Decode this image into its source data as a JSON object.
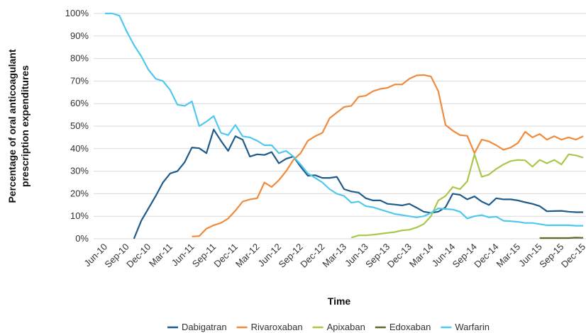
{
  "chart_data": {
    "type": "line",
    "y_label": [
      "Percentage of oral anticoagulant",
      "prescription expenditures"
    ],
    "x_label": "Time",
    "categories": [
      "Jun-10",
      null,
      null,
      "Sep-10",
      null,
      null,
      "Dec-10",
      null,
      null,
      "Mar-11",
      null,
      null,
      "Jun-11",
      null,
      null,
      "Sep-11",
      null,
      null,
      "Dec-11",
      null,
      null,
      "Mar-12",
      null,
      null,
      "Jun-12",
      null,
      null,
      "Sep-12",
      null,
      null,
      "Dec-12",
      null,
      null,
      "Mar-13",
      null,
      null,
      "Jun-13",
      null,
      null,
      "Sep-13",
      null,
      null,
      "Dec-13",
      null,
      null,
      "Mar-14",
      null,
      null,
      "Jun-14",
      null,
      null,
      "Sep-14",
      null,
      null,
      "Dec-14",
      null,
      null,
      "Mar-15",
      null,
      null,
      "Jun-15",
      null,
      null,
      "Sep-15",
      null,
      null,
      "Dec-15"
    ],
    "ylim": [
      0,
      100
    ],
    "yticks": [
      {
        "value": 0,
        "label": "0%"
      },
      {
        "value": 10,
        "label": "10%"
      },
      {
        "value": 20,
        "label": "20%"
      },
      {
        "value": 30,
        "label": "30%"
      },
      {
        "value": 40,
        "label": "40%"
      },
      {
        "value": 50,
        "label": "50%"
      },
      {
        "value": 60,
        "label": "60%"
      },
      {
        "value": 70,
        "label": "70%"
      },
      {
        "value": 80,
        "label": "80%"
      },
      {
        "value": 90,
        "label": "90%"
      },
      {
        "value": 100,
        "label": "100%"
      }
    ],
    "grid": true,
    "legend": "bottom",
    "series": [
      {
        "name": "Dabigatran",
        "color": "#1f5b8a",
        "values": [
          null,
          null,
          null,
          null,
          0,
          8,
          13.5,
          19,
          25,
          29,
          30,
          34,
          40.5,
          40.2,
          38,
          48.5,
          43.5,
          39,
          45.5,
          44,
          36.5,
          37.5,
          37.2,
          38.5,
          33.5,
          35.5,
          36.5,
          32,
          28,
          28.2,
          27,
          27,
          27.5,
          22,
          21,
          20.5,
          18,
          17,
          17,
          15.5,
          15.2,
          14.8,
          15.5,
          13.8,
          12,
          11.5,
          12,
          14,
          20,
          19.5,
          17.5,
          18.8,
          16.5,
          15,
          18,
          17.5,
          17.5,
          17,
          16.2,
          15.5,
          14.5,
          12.2,
          12.3,
          12.4,
          12,
          11.8,
          11.8
        ]
      },
      {
        "name": "Rivaroxaban",
        "color": "#f08a3c",
        "values": [
          null,
          null,
          null,
          null,
          null,
          null,
          null,
          null,
          null,
          null,
          null,
          null,
          1,
          1.2,
          4.5,
          6,
          7,
          9,
          12.5,
          16.5,
          17.5,
          18,
          25,
          23,
          26,
          30,
          35,
          38,
          43.5,
          45.5,
          47,
          53.5,
          56,
          58.5,
          59,
          63,
          63.5,
          65.5,
          66.5,
          67,
          68.5,
          68.5,
          71,
          72.5,
          72.7,
          72,
          65.5,
          50.5,
          48,
          46,
          45.7,
          38,
          44,
          43.2,
          41.5,
          39.5,
          40.5,
          42.5,
          47.5,
          45,
          46.5,
          44,
          45.5,
          44,
          45,
          44,
          45.5
        ]
      },
      {
        "name": "Apixaban",
        "color": "#a8c84a",
        "values": [
          null,
          null,
          null,
          null,
          null,
          null,
          null,
          null,
          null,
          null,
          null,
          null,
          null,
          null,
          null,
          null,
          null,
          null,
          null,
          null,
          null,
          null,
          null,
          null,
          null,
          null,
          null,
          null,
          null,
          null,
          null,
          null,
          null,
          null,
          0.5,
          1.5,
          1.5,
          1.8,
          2.2,
          2.6,
          3,
          3.7,
          4,
          5,
          6.5,
          10,
          17,
          19,
          23,
          22,
          25.5,
          37.5,
          27.5,
          28.5,
          31,
          33,
          34.5,
          35,
          34.8,
          32,
          35,
          33.5,
          35,
          33,
          37.5,
          37,
          36
        ]
      },
      {
        "name": "Edoxaban",
        "color": "#5b6b2a",
        "values": [
          null,
          null,
          null,
          null,
          null,
          null,
          null,
          null,
          null,
          null,
          null,
          null,
          null,
          null,
          null,
          null,
          null,
          null,
          null,
          null,
          null,
          null,
          null,
          null,
          null,
          null,
          null,
          null,
          null,
          null,
          null,
          null,
          null,
          null,
          null,
          null,
          null,
          null,
          null,
          null,
          null,
          null,
          null,
          null,
          null,
          null,
          null,
          null,
          null,
          null,
          null,
          null,
          null,
          null,
          null,
          null,
          null,
          null,
          null,
          null,
          0.3,
          0.3,
          0.3,
          0.3,
          0.3,
          0.5,
          0.4
        ]
      },
      {
        "name": "Warfarin",
        "color": "#4fc8f0",
        "values": [
          100,
          100,
          99,
          92,
          86,
          81,
          75,
          71,
          70,
          66,
          59.5,
          59,
          61,
          50,
          52,
          54.5,
          47,
          46,
          50.5,
          45.5,
          45,
          43.5,
          41.5,
          41.5,
          38,
          39,
          36.5,
          33,
          29,
          27,
          25,
          22,
          20,
          19,
          16,
          16.5,
          14.5,
          14,
          13,
          12,
          11,
          10.5,
          10,
          9.5,
          10,
          11.5,
          13.5,
          13.2,
          13,
          12,
          9,
          10,
          10.5,
          9.5,
          9.8,
          8,
          7.8,
          7.5,
          7,
          7,
          6.5,
          6,
          6,
          6,
          6,
          5.8,
          5.8
        ]
      }
    ]
  }
}
